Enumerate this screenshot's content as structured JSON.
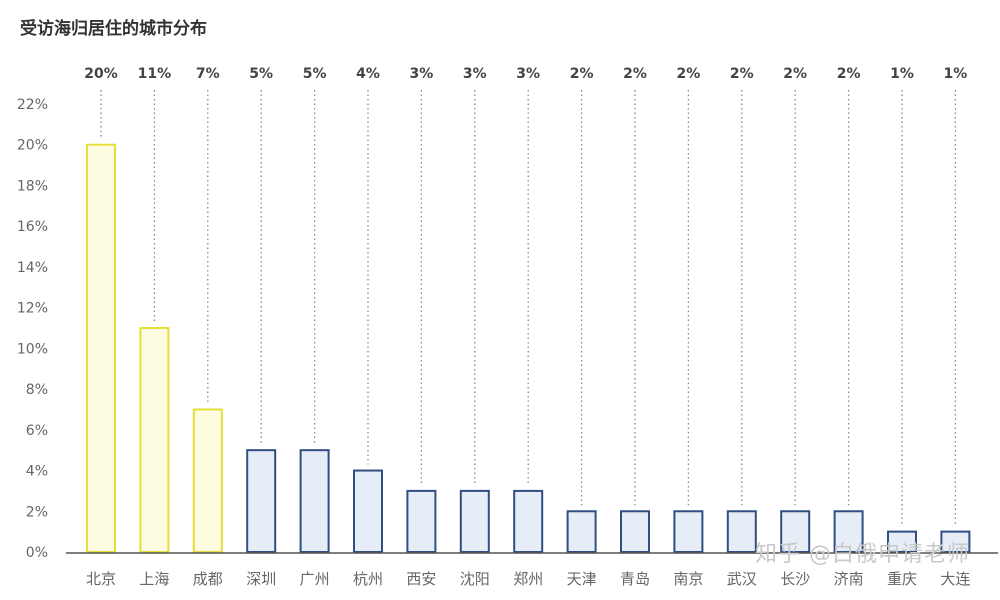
{
  "title": "受访海归居住的城市分布",
  "watermark": "知乎 @白俄申请老师",
  "chart_data": {
    "type": "bar",
    "categories": [
      "北京",
      "上海",
      "成都",
      "深圳",
      "广州",
      "杭州",
      "西安",
      "沈阳",
      "郑州",
      "天津",
      "青岛",
      "南京",
      "武汉",
      "长沙",
      "济南",
      "重庆",
      "大连"
    ],
    "values": [
      20,
      11,
      7,
      5,
      5,
      4,
      3,
      3,
      3,
      2,
      2,
      2,
      2,
      2,
      2,
      1,
      1
    ],
    "value_labels": [
      "20%",
      "11%",
      "7%",
      "5%",
      "5%",
      "4%",
      "3%",
      "3%",
      "3%",
      "2%",
      "2%",
      "2%",
      "2%",
      "2%",
      "2%",
      "1%",
      "1%"
    ],
    "highlight_count": 3,
    "yticks": [
      "0%",
      "2%",
      "4%",
      "6%",
      "8%",
      "10%",
      "12%",
      "14%",
      "16%",
      "18%",
      "20%",
      "22%"
    ],
    "ylim": [
      0,
      22
    ],
    "colors": {
      "highlight_fill": "#fdfbe0",
      "highlight_stroke": "#e6df3a",
      "normal_fill": "#e7edf6",
      "normal_stroke": "#2f4f82",
      "axis": "#555555",
      "dotted": "#8a8a8a",
      "label_text": "#444444",
      "tick_text": "#666666"
    }
  }
}
